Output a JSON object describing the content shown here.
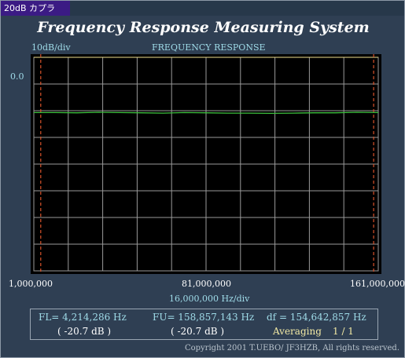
{
  "window": {
    "title": "20dB カプラ"
  },
  "header": {
    "title": "Frequency Response Measuring System",
    "scale_label": "10dB/div",
    "graph_title": "FREQUENCY RESPONSE"
  },
  "axis": {
    "y_ref": "0.0",
    "x_start": "1,000,000",
    "x_mid": "81,000,000",
    "x_end": "161,000,000",
    "x_div": "16,000,000  Hz/div"
  },
  "measurements": {
    "fl": "FL= 4,214,286  Hz",
    "fu": "FU= 158,857,143  Hz",
    "df": "df = 154,642,857  Hz",
    "fl_db": "( -20.7 dB )",
    "fu_db": "( -20.7 dB )",
    "averaging_label": "Averaging",
    "averaging_value": "1 / 1"
  },
  "footer": {
    "copyright": "Copyright 2001 T.UEBO/ JF3HZB, All rights reserved."
  },
  "colors": {
    "trace": "#3ec13e",
    "grid": "#9a9a9a",
    "marker": "#d9532a",
    "ref_line": "#f0e090"
  },
  "chart_data": {
    "type": "line",
    "xlabel": "16,000,000  Hz/div",
    "ylabel": "10dB/div",
    "xlim": [
      1000000,
      161000000
    ],
    "ylim": [
      -80,
      0
    ],
    "markers": [
      4214286,
      158857143
    ],
    "series": [
      {
        "x": [
          1000000,
          11000000,
          21000000,
          31000000,
          41000000,
          51000000,
          61000000,
          71000000,
          81000000,
          91000000,
          101000000,
          111000000,
          121000000,
          131000000,
          141000000,
          151000000,
          161000000
        ],
        "values": [
          -20.7,
          -20.7,
          -20.8,
          -20.6,
          -20.7,
          -20.8,
          -20.9,
          -20.7,
          -20.8,
          -20.9,
          -20.9,
          -21.0,
          -20.9,
          -20.8,
          -20.8,
          -20.6,
          -20.7
        ]
      }
    ]
  }
}
